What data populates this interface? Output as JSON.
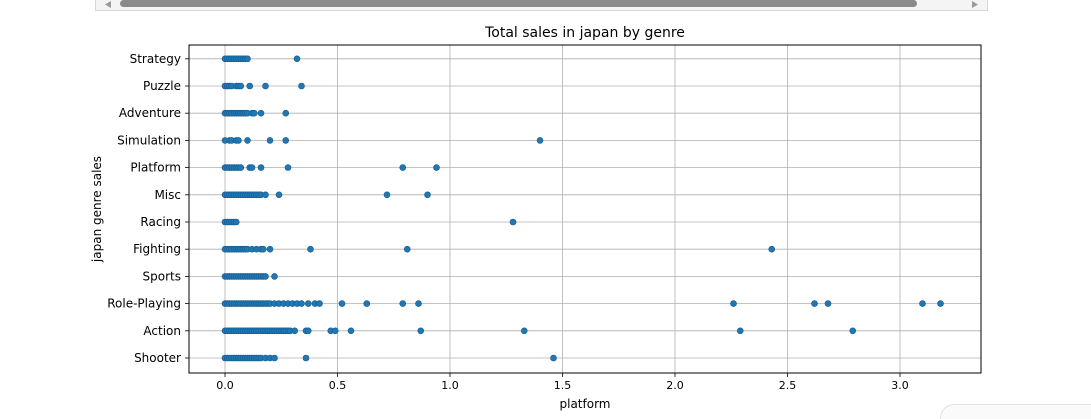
{
  "chart_data": {
    "type": "scatter",
    "title": "Total sales in japan by genre",
    "xlabel": "platform",
    "ylabel": "japan genre sales",
    "xlim": [
      -0.16,
      3.36
    ],
    "xticks": [
      0.0,
      0.5,
      1.0,
      1.5,
      2.0,
      2.5,
      3.0
    ],
    "xtick_labels": [
      "0.0",
      "0.5",
      "1.0",
      "1.5",
      "2.0",
      "2.5",
      "3.0"
    ],
    "categories": [
      "Shooter",
      "Action",
      "Role-Playing",
      "Sports",
      "Fighting",
      "Racing",
      "Misc",
      "Platform",
      "Simulation",
      "Adventure",
      "Puzzle",
      "Strategy"
    ],
    "grid": true,
    "marker_color": "#1f77b4",
    "points": [
      {
        "category": "Strategy",
        "x": [
          0.0,
          0.01,
          0.02,
          0.03,
          0.04,
          0.05,
          0.06,
          0.07,
          0.08,
          0.09,
          0.1,
          0.32
        ]
      },
      {
        "category": "Puzzle",
        "x": [
          0.0,
          0.01,
          0.02,
          0.03,
          0.05,
          0.06,
          0.07,
          0.11,
          0.18,
          0.34
        ]
      },
      {
        "category": "Adventure",
        "x": [
          0.0,
          0.01,
          0.02,
          0.03,
          0.04,
          0.05,
          0.06,
          0.07,
          0.08,
          0.09,
          0.1,
          0.12,
          0.13,
          0.16,
          0.27
        ]
      },
      {
        "category": "Simulation",
        "x": [
          0.0,
          0.02,
          0.03,
          0.05,
          0.06,
          0.1,
          0.2,
          0.27,
          1.4
        ]
      },
      {
        "category": "Platform",
        "x": [
          0.0,
          0.01,
          0.02,
          0.03,
          0.04,
          0.05,
          0.06,
          0.07,
          0.11,
          0.12,
          0.16,
          0.28,
          0.79,
          0.94
        ]
      },
      {
        "category": "Misc",
        "x": [
          0.0,
          0.01,
          0.02,
          0.03,
          0.04,
          0.05,
          0.06,
          0.07,
          0.08,
          0.09,
          0.1,
          0.11,
          0.12,
          0.13,
          0.14,
          0.15,
          0.16,
          0.18,
          0.24,
          0.72,
          0.9
        ]
      },
      {
        "category": "Racing",
        "x": [
          0.0,
          0.01,
          0.02,
          0.03,
          0.04,
          0.05,
          1.28
        ]
      },
      {
        "category": "Fighting",
        "x": [
          0.0,
          0.01,
          0.02,
          0.03,
          0.04,
          0.05,
          0.06,
          0.07,
          0.08,
          0.09,
          0.1,
          0.12,
          0.14,
          0.16,
          0.17,
          0.2,
          0.38,
          0.81,
          2.43
        ]
      },
      {
        "category": "Sports",
        "x": [
          0.0,
          0.01,
          0.02,
          0.03,
          0.04,
          0.05,
          0.06,
          0.07,
          0.08,
          0.09,
          0.1,
          0.11,
          0.12,
          0.13,
          0.14,
          0.15,
          0.16,
          0.17,
          0.18,
          0.22
        ]
      },
      {
        "category": "Role-Playing",
        "x": [
          0.0,
          0.01,
          0.02,
          0.03,
          0.04,
          0.05,
          0.06,
          0.07,
          0.08,
          0.09,
          0.1,
          0.11,
          0.12,
          0.13,
          0.14,
          0.15,
          0.16,
          0.17,
          0.18,
          0.19,
          0.2,
          0.22,
          0.24,
          0.26,
          0.28,
          0.3,
          0.32,
          0.34,
          0.37,
          0.4,
          0.42,
          0.52,
          0.63,
          0.79,
          0.86,
          2.26,
          2.62,
          2.68,
          3.1,
          3.18
        ]
      },
      {
        "category": "Action",
        "x": [
          0.0,
          0.01,
          0.02,
          0.03,
          0.04,
          0.05,
          0.06,
          0.07,
          0.08,
          0.09,
          0.1,
          0.11,
          0.12,
          0.13,
          0.14,
          0.15,
          0.16,
          0.17,
          0.18,
          0.19,
          0.2,
          0.21,
          0.22,
          0.23,
          0.24,
          0.25,
          0.26,
          0.27,
          0.28,
          0.29,
          0.31,
          0.36,
          0.37,
          0.47,
          0.49,
          0.56,
          0.87,
          1.33,
          2.29,
          2.79
        ]
      },
      {
        "category": "Shooter",
        "x": [
          0.0,
          0.01,
          0.02,
          0.03,
          0.04,
          0.05,
          0.06,
          0.07,
          0.08,
          0.09,
          0.1,
          0.11,
          0.12,
          0.13,
          0.14,
          0.15,
          0.16,
          0.18,
          0.2,
          0.22,
          0.36,
          1.46
        ]
      }
    ]
  }
}
